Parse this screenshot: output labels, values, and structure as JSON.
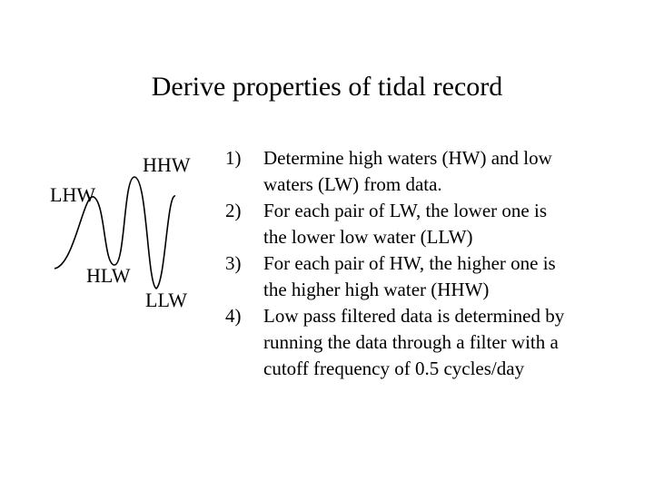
{
  "title": "Derive properties of tidal record",
  "diagram": {
    "labels": {
      "hhw": "HHW",
      "lhw": "LHW",
      "hlw": "HLW",
      "llw": "LLW"
    },
    "line_color": "#000000"
  },
  "steps": [
    {
      "num": "1)",
      "lines": [
        "Determine high waters (HW) and low",
        "waters (LW) from data."
      ]
    },
    {
      "num": "2)",
      "lines": [
        "For each pair of LW, the lower one is",
        "the lower low water (LLW)"
      ]
    },
    {
      "num": "3)",
      "lines": [
        "For each pair of HW, the higher one is",
        "the higher high water (HHW)"
      ]
    },
    {
      "num": "4)",
      "lines": [
        "Low pass filtered data is determined by",
        "running the data through a filter with a",
        "cutoff frequency of 0.5 cycles/day"
      ]
    }
  ]
}
